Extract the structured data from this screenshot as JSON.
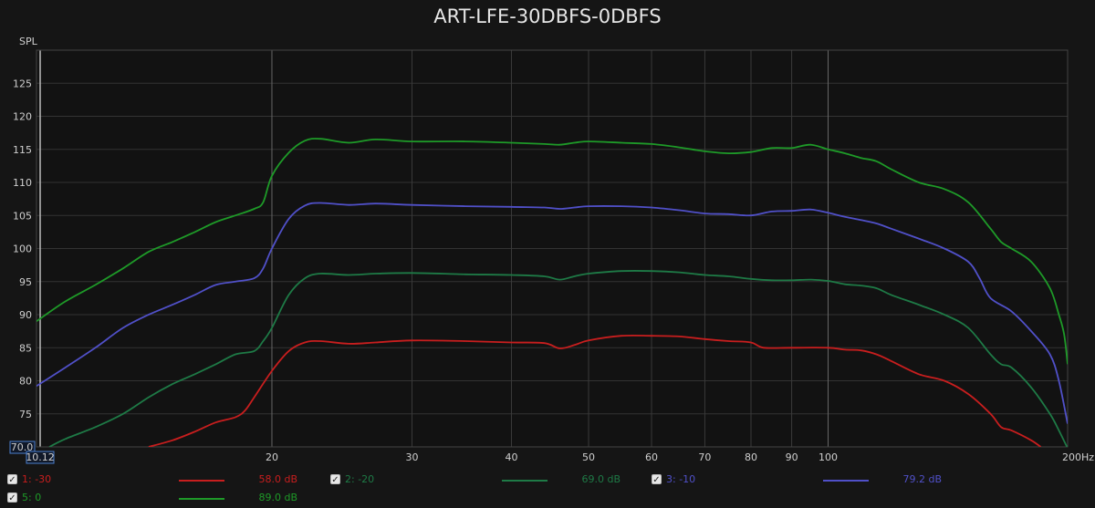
{
  "chart_data": {
    "type": "line",
    "title": "ART-LFE-30DBFS-0DBFS",
    "ylabel": "SPL",
    "xunit": "Hz",
    "xscale": "log",
    "xlim": [
      10.12,
      200
    ],
    "ylim": [
      70,
      130
    ],
    "x_ticks": [
      20,
      30,
      40,
      50,
      60,
      70,
      80,
      90,
      100,
      200
    ],
    "x_tick_labels": [
      "20",
      "30",
      "40",
      "50",
      "60",
      "70",
      "80",
      "90",
      "100",
      "200Hz"
    ],
    "x_min_label": "10.12",
    "y_ticks": [
      75,
      80,
      85,
      90,
      95,
      100,
      105,
      110,
      115,
      120,
      125
    ],
    "y_min_label": "70.0",
    "grid": true,
    "legend_position": "bottom",
    "series": [
      {
        "name": "1: -30",
        "color": "#c81e1e",
        "level": "58.0 dB",
        "points": [
          [
            14,
            70
          ],
          [
            15,
            71
          ],
          [
            16,
            72.3
          ],
          [
            17,
            73.7
          ],
          [
            18,
            74.5
          ],
          [
            18.5,
            75.5
          ],
          [
            19,
            77.5
          ],
          [
            20,
            81.5
          ],
          [
            21,
            84.5
          ],
          [
            22,
            85.8
          ],
          [
            23,
            86
          ],
          [
            25,
            85.6
          ],
          [
            27,
            85.8
          ],
          [
            30,
            86.1
          ],
          [
            35,
            86
          ],
          [
            40,
            85.8
          ],
          [
            44,
            85.7
          ],
          [
            46,
            84.9
          ],
          [
            48,
            85.4
          ],
          [
            50,
            86.1
          ],
          [
            55,
            86.8
          ],
          [
            60,
            86.8
          ],
          [
            65,
            86.7
          ],
          [
            70,
            86.3
          ],
          [
            75,
            86
          ],
          [
            80,
            85.8
          ],
          [
            83,
            85
          ],
          [
            90,
            85
          ],
          [
            100,
            85
          ],
          [
            105,
            84.7
          ],
          [
            110,
            84.6
          ],
          [
            115,
            84
          ],
          [
            120,
            83
          ],
          [
            130,
            81
          ],
          [
            140,
            80
          ],
          [
            150,
            78
          ],
          [
            160,
            75
          ],
          [
            165,
            73
          ],
          [
            170,
            72.5
          ],
          [
            180,
            71
          ],
          [
            185,
            70
          ]
        ]
      },
      {
        "name": "2: -20",
        "color": "#1e7a46",
        "level": "69.0 dB",
        "points": [
          [
            10.5,
            70
          ],
          [
            11,
            71.2
          ],
          [
            12,
            73
          ],
          [
            13,
            75
          ],
          [
            14,
            77.5
          ],
          [
            15,
            79.5
          ],
          [
            16,
            81
          ],
          [
            17,
            82.5
          ],
          [
            18,
            84
          ],
          [
            19,
            84.5
          ],
          [
            19.5,
            86
          ],
          [
            20,
            88
          ],
          [
            21,
            93
          ],
          [
            22,
            95.5
          ],
          [
            23,
            96.2
          ],
          [
            25,
            96
          ],
          [
            27,
            96.2
          ],
          [
            30,
            96.3
          ],
          [
            35,
            96.1
          ],
          [
            40,
            96
          ],
          [
            44,
            95.8
          ],
          [
            46,
            95.3
          ],
          [
            48,
            95.8
          ],
          [
            50,
            96.2
          ],
          [
            55,
            96.6
          ],
          [
            60,
            96.6
          ],
          [
            65,
            96.4
          ],
          [
            70,
            96
          ],
          [
            75,
            95.8
          ],
          [
            80,
            95.4
          ],
          [
            85,
            95.2
          ],
          [
            90,
            95.2
          ],
          [
            95,
            95.3
          ],
          [
            100,
            95.1
          ],
          [
            105,
            94.6
          ],
          [
            110,
            94.4
          ],
          [
            115,
            94
          ],
          [
            120,
            93
          ],
          [
            130,
            91.5
          ],
          [
            140,
            90
          ],
          [
            150,
            88
          ],
          [
            160,
            84
          ],
          [
            165,
            82.5
          ],
          [
            170,
            82
          ],
          [
            180,
            79
          ],
          [
            190,
            75
          ],
          [
            195,
            72.5
          ],
          [
            200,
            69.8
          ]
        ]
      },
      {
        "name": "3: -10",
        "color": "#5050c8",
        "level": "79.2 dB",
        "points": [
          [
            10.12,
            79.2
          ],
          [
            11,
            82
          ],
          [
            12,
            85
          ],
          [
            13,
            88
          ],
          [
            14,
            90
          ],
          [
            15,
            91.5
          ],
          [
            16,
            93
          ],
          [
            17,
            94.5
          ],
          [
            18,
            95
          ],
          [
            19,
            95.5
          ],
          [
            19.5,
            97
          ],
          [
            20,
            100
          ],
          [
            21,
            104.5
          ],
          [
            22,
            106.5
          ],
          [
            23,
            106.9
          ],
          [
            25,
            106.6
          ],
          [
            27,
            106.8
          ],
          [
            30,
            106.6
          ],
          [
            35,
            106.4
          ],
          [
            40,
            106.3
          ],
          [
            44,
            106.2
          ],
          [
            46,
            106
          ],
          [
            48,
            106.2
          ],
          [
            50,
            106.4
          ],
          [
            55,
            106.4
          ],
          [
            60,
            106.2
          ],
          [
            65,
            105.8
          ],
          [
            70,
            105.3
          ],
          [
            75,
            105.2
          ],
          [
            80,
            105
          ],
          [
            85,
            105.6
          ],
          [
            90,
            105.7
          ],
          [
            95,
            105.9
          ],
          [
            100,
            105.4
          ],
          [
            105,
            104.8
          ],
          [
            110,
            104.3
          ],
          [
            115,
            103.8
          ],
          [
            120,
            103
          ],
          [
            130,
            101.5
          ],
          [
            140,
            100
          ],
          [
            150,
            98
          ],
          [
            155,
            95.5
          ],
          [
            160,
            92.5
          ],
          [
            170,
            90.5
          ],
          [
            180,
            87.5
          ],
          [
            190,
            84
          ],
          [
            195,
            80
          ],
          [
            200,
            73.5
          ]
        ]
      },
      {
        "name": "5: 0",
        "color": "#1e9a28",
        "level": "89.0 dB",
        "points": [
          [
            10.12,
            89
          ],
          [
            11,
            92
          ],
          [
            12,
            94.5
          ],
          [
            13,
            97
          ],
          [
            14,
            99.5
          ],
          [
            15,
            101
          ],
          [
            16,
            102.5
          ],
          [
            17,
            104
          ],
          [
            18,
            105
          ],
          [
            19,
            106
          ],
          [
            19.5,
            107
          ],
          [
            20,
            111
          ],
          [
            21,
            114.5
          ],
          [
            22,
            116.3
          ],
          [
            23,
            116.6
          ],
          [
            25,
            116
          ],
          [
            27,
            116.5
          ],
          [
            30,
            116.2
          ],
          [
            35,
            116.2
          ],
          [
            40,
            116
          ],
          [
            44,
            115.8
          ],
          [
            46,
            115.7
          ],
          [
            48,
            116
          ],
          [
            50,
            116.2
          ],
          [
            55,
            116
          ],
          [
            60,
            115.8
          ],
          [
            65,
            115.3
          ],
          [
            70,
            114.7
          ],
          [
            75,
            114.4
          ],
          [
            80,
            114.6
          ],
          [
            85,
            115.2
          ],
          [
            90,
            115.2
          ],
          [
            95,
            115.7
          ],
          [
            100,
            115
          ],
          [
            105,
            114.4
          ],
          [
            110,
            113.7
          ],
          [
            115,
            113.2
          ],
          [
            120,
            112
          ],
          [
            130,
            110
          ],
          [
            140,
            109
          ],
          [
            150,
            107
          ],
          [
            160,
            103
          ],
          [
            165,
            101
          ],
          [
            170,
            100
          ],
          [
            180,
            98
          ],
          [
            190,
            94
          ],
          [
            195,
            90
          ],
          [
            198,
            87
          ],
          [
            200,
            82.5
          ]
        ]
      }
    ]
  }
}
